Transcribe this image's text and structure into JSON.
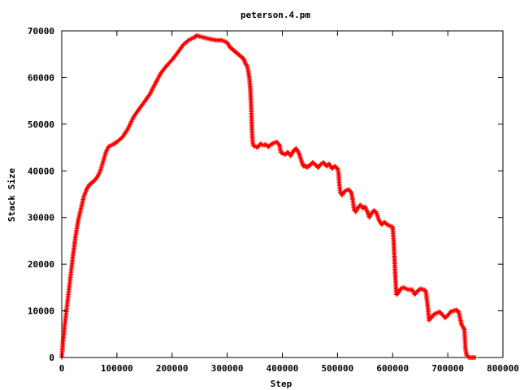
{
  "chart_data": {
    "type": "scatter",
    "title": "peterson.4.pm",
    "xlabel": "Step",
    "ylabel": "Stack Size",
    "xlim": [
      0,
      800000
    ],
    "ylim": [
      0,
      70000
    ],
    "xticks": [
      0,
      100000,
      200000,
      300000,
      400000,
      500000,
      600000,
      700000,
      800000
    ],
    "yticks": [
      0,
      10000,
      20000,
      30000,
      40000,
      50000,
      60000,
      70000
    ],
    "grid": false,
    "legend": "none",
    "marker": "+",
    "series": [
      {
        "color": "#ff0000",
        "points": [
          [
            0,
            0
          ],
          [
            2000,
            3000
          ],
          [
            5000,
            6500
          ],
          [
            8000,
            9500
          ],
          [
            12000,
            13500
          ],
          [
            16000,
            17500
          ],
          [
            20000,
            21500
          ],
          [
            25000,
            26000
          ],
          [
            30000,
            29500
          ],
          [
            35000,
            32000
          ],
          [
            40000,
            34500
          ],
          [
            45000,
            36000
          ],
          [
            50000,
            37000
          ],
          [
            55000,
            37500
          ],
          [
            60000,
            38000
          ],
          [
            65000,
            38800
          ],
          [
            70000,
            40000
          ],
          [
            75000,
            42000
          ],
          [
            80000,
            44000
          ],
          [
            85000,
            45200
          ],
          [
            90000,
            45500
          ],
          [
            95000,
            45800
          ],
          [
            100000,
            46200
          ],
          [
            110000,
            47200
          ],
          [
            120000,
            49000
          ],
          [
            130000,
            51500
          ],
          [
            140000,
            53200
          ],
          [
            150000,
            54800
          ],
          [
            160000,
            56500
          ],
          [
            170000,
            58800
          ],
          [
            180000,
            61000
          ],
          [
            190000,
            62500
          ],
          [
            200000,
            63800
          ],
          [
            210000,
            65300
          ],
          [
            220000,
            67000
          ],
          [
            230000,
            68000
          ],
          [
            240000,
            68600
          ],
          [
            245000,
            69000
          ],
          [
            250000,
            68800
          ],
          [
            260000,
            68500
          ],
          [
            270000,
            68200
          ],
          [
            280000,
            68000
          ],
          [
            290000,
            68000
          ],
          [
            300000,
            67500
          ],
          [
            305000,
            66500
          ],
          [
            310000,
            66000
          ],
          [
            315000,
            65500
          ],
          [
            320000,
            65000
          ],
          [
            325000,
            64500
          ],
          [
            330000,
            64000
          ],
          [
            333000,
            63000
          ],
          [
            336000,
            62500
          ],
          [
            338000,
            61500
          ],
          [
            340000,
            60000
          ],
          [
            342000,
            57500
          ],
          [
            343000,
            55000
          ],
          [
            344000,
            52000
          ],
          [
            345000,
            48500
          ],
          [
            346000,
            46500
          ],
          [
            347000,
            45500
          ],
          [
            350000,
            45300
          ],
          [
            355000,
            45000
          ],
          [
            360000,
            45800
          ],
          [
            365000,
            45500
          ],
          [
            370000,
            45600
          ],
          [
            375000,
            45200
          ],
          [
            380000,
            45700
          ],
          [
            385000,
            46000
          ],
          [
            390000,
            46200
          ],
          [
            395000,
            45500
          ],
          [
            397000,
            44000
          ],
          [
            400000,
            43800
          ],
          [
            405000,
            43500
          ],
          [
            410000,
            44000
          ],
          [
            415000,
            43200
          ],
          [
            420000,
            44300
          ],
          [
            425000,
            44800
          ],
          [
            430000,
            43800
          ],
          [
            435000,
            42000
          ],
          [
            438000,
            41000
          ],
          [
            442000,
            41000
          ],
          [
            445000,
            40800
          ],
          [
            450000,
            41200
          ],
          [
            455000,
            41800
          ],
          [
            460000,
            41300
          ],
          [
            465000,
            40700
          ],
          [
            470000,
            41500
          ],
          [
            475000,
            41800
          ],
          [
            480000,
            41000
          ],
          [
            485000,
            41500
          ],
          [
            490000,
            40500
          ],
          [
            495000,
            41000
          ],
          [
            500000,
            40500
          ],
          [
            502000,
            39500
          ],
          [
            503000,
            37500
          ],
          [
            505000,
            35500
          ],
          [
            508000,
            34800
          ],
          [
            510000,
            35200
          ],
          [
            515000,
            35800
          ],
          [
            520000,
            36000
          ],
          [
            525000,
            35400
          ],
          [
            528000,
            33500
          ],
          [
            530000,
            31800
          ],
          [
            533000,
            31200
          ],
          [
            538000,
            32300
          ],
          [
            542000,
            32700
          ],
          [
            546000,
            32000
          ],
          [
            550000,
            32300
          ],
          [
            555000,
            31000
          ],
          [
            558000,
            30000
          ],
          [
            562000,
            31000
          ],
          [
            566000,
            31500
          ],
          [
            570000,
            31200
          ],
          [
            575000,
            29500
          ],
          [
            580000,
            28500
          ],
          [
            585000,
            29000
          ],
          [
            590000,
            28500
          ],
          [
            595000,
            28200
          ],
          [
            600000,
            28000
          ],
          [
            601000,
            26500
          ],
          [
            602000,
            24500
          ],
          [
            603000,
            22000
          ],
          [
            604000,
            19500
          ],
          [
            605000,
            17000
          ],
          [
            606000,
            15000
          ],
          [
            607000,
            13500
          ],
          [
            610000,
            13800
          ],
          [
            615000,
            14800
          ],
          [
            620000,
            15000
          ],
          [
            625000,
            14700
          ],
          [
            630000,
            14500
          ],
          [
            635000,
            14600
          ],
          [
            640000,
            13500
          ],
          [
            645000,
            14200
          ],
          [
            650000,
            14700
          ],
          [
            655000,
            14600
          ],
          [
            660000,
            14300
          ],
          [
            662000,
            12500
          ],
          [
            664000,
            10500
          ],
          [
            666000,
            8000
          ],
          [
            670000,
            8500
          ],
          [
            675000,
            9300
          ],
          [
            680000,
            9500
          ],
          [
            685000,
            9800
          ],
          [
            690000,
            9200
          ],
          [
            695000,
            8500
          ],
          [
            700000,
            9000
          ],
          [
            705000,
            9800
          ],
          [
            710000,
            10000
          ],
          [
            715000,
            10200
          ],
          [
            720000,
            9800
          ],
          [
            722000,
            8500
          ],
          [
            725000,
            7000
          ],
          [
            728000,
            6500
          ],
          [
            730000,
            6000
          ],
          [
            731000,
            4000
          ],
          [
            732000,
            2000
          ],
          [
            734000,
            500
          ],
          [
            738000,
            0
          ],
          [
            745000,
            0
          ],
          [
            750000,
            0
          ]
        ]
      }
    ]
  }
}
